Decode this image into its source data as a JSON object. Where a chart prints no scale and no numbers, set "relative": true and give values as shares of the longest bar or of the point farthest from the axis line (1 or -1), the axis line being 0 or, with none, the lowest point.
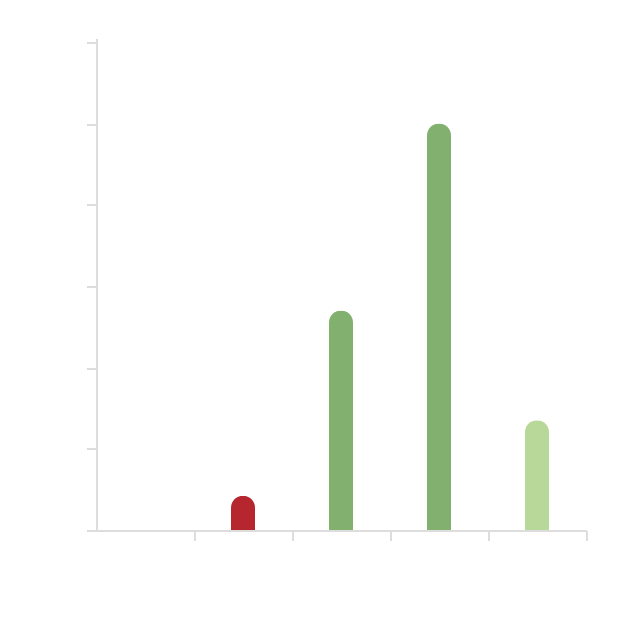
{
  "chart_data": {
    "type": "bar",
    "relative": true,
    "tick_labels": false,
    "categories": [
      null,
      null,
      null,
      null
    ],
    "values": [
      0.084,
      0.54,
      1,
      0.27
    ],
    "colors": [
      "#b5262e",
      "#82b06e",
      "#82b06e",
      "#b8d89a"
    ]
  }
}
